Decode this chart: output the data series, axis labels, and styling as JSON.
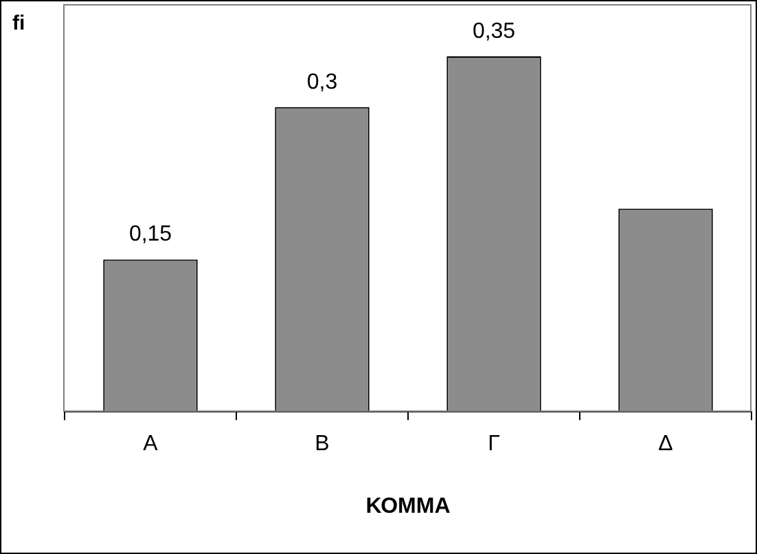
{
  "chart_data": {
    "type": "bar",
    "ylabel": "fi",
    "xlabel": "ΚΟΜΜΑ",
    "categories": [
      "Α",
      "Β",
      "Γ",
      "Δ"
    ],
    "values": [
      0.15,
      0.3,
      0.35,
      0.2
    ],
    "value_labels": [
      "0,15",
      "0,3",
      "0,35",
      null
    ],
    "color": "#8c8c8c",
    "grid": false,
    "legend": false
  }
}
